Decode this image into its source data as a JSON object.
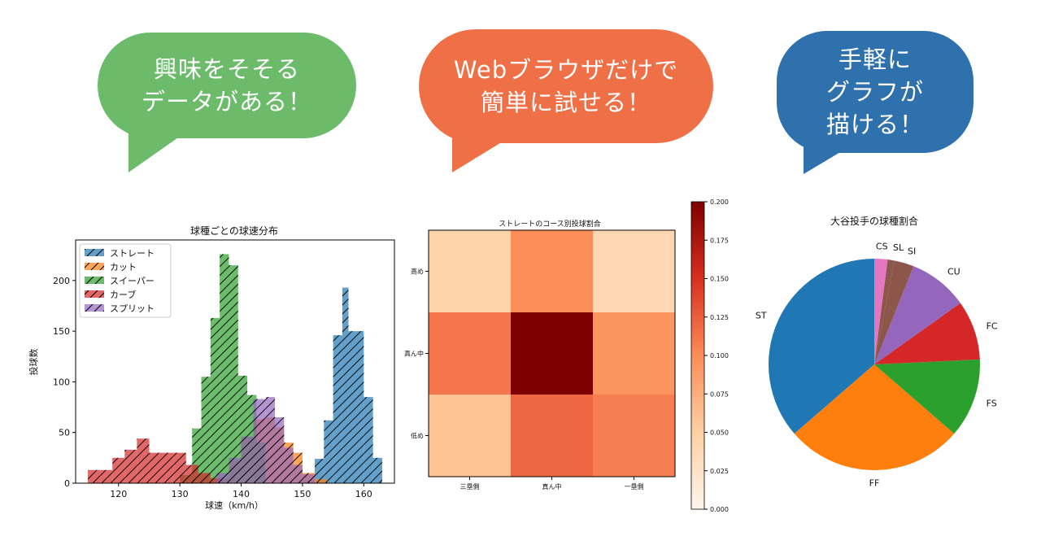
{
  "bubbles": [
    {
      "lines": [
        "興味をそそる",
        "データがある！"
      ],
      "color": "#6bbb6b"
    },
    {
      "lines": [
        "Webブラウザだけで",
        "簡単に試せる！"
      ],
      "color": "#ef7047"
    },
    {
      "lines": [
        "手軽に",
        "グラフが",
        "描ける！"
      ],
      "color": "#2f71ac"
    }
  ],
  "chart_data": [
    {
      "type": "histogram",
      "title": "球種ごとの球速分布",
      "xlabel": "球速（km/h）",
      "ylabel": "投球数",
      "xlim": [
        113,
        165
      ],
      "ylim": [
        0,
        240
      ],
      "xticks": [
        "120",
        "130",
        "140",
        "150",
        "160"
      ],
      "yticks": [
        "0",
        "50",
        "100",
        "150",
        "200"
      ],
      "legend": "top-left",
      "series": [
        {
          "name": "ストレート",
          "color": "#1f77b4",
          "bins": [
            [
              150,
              152,
              3
            ],
            [
              152,
              153.5,
              24
            ],
            [
              153.5,
              155,
              62
            ],
            [
              155,
              156.5,
              146
            ],
            [
              156.5,
              157.5,
              193
            ],
            [
              157.5,
              158.5,
              150
            ],
            [
              158.5,
              160,
              150
            ],
            [
              160,
              161.5,
              85
            ],
            [
              161.5,
              163,
              25
            ]
          ]
        },
        {
          "name": "カット",
          "color": "#ff7f0e",
          "bins": [
            [
              136,
              138,
              5
            ],
            [
              138,
              140,
              22
            ],
            [
              140,
              142,
              45
            ],
            [
              142,
              144,
              63
            ],
            [
              144,
              145.5,
              65
            ],
            [
              145.5,
              147,
              55
            ],
            [
              147,
              148.5,
              40
            ],
            [
              148.5,
              150,
              30
            ],
            [
              150,
              152,
              10
            ],
            [
              152,
              154,
              4
            ]
          ]
        },
        {
          "name": "スイーパー",
          "color": "#2ca02c",
          "bins": [
            [
              130,
              132,
              8
            ],
            [
              132,
              133.5,
              54
            ],
            [
              133.5,
              135,
              105
            ],
            [
              135,
              136.5,
              163
            ],
            [
              136.5,
              138,
              226
            ],
            [
              138,
              139.5,
              215
            ],
            [
              139.5,
              141,
              106
            ],
            [
              141,
              142.5,
              87
            ],
            [
              142.5,
              144,
              40
            ]
          ]
        },
        {
          "name": "カーブ",
          "color": "#d62728",
          "bins": [
            [
              115,
              117,
              13
            ],
            [
              117,
              119,
              13
            ],
            [
              119,
              121,
              25
            ],
            [
              121,
              123,
              33
            ],
            [
              123,
              125,
              44
            ],
            [
              125,
              127,
              30
            ],
            [
              127,
              129,
              30
            ],
            [
              129,
              131,
              30
            ],
            [
              131,
              133,
              18
            ],
            [
              133,
              135,
              10
            ],
            [
              135,
              137,
              5
            ]
          ]
        },
        {
          "name": "スプリット",
          "color": "#9467bd",
          "bins": [
            [
              136,
              138,
              10
            ],
            [
              138,
              140,
              25
            ],
            [
              140,
              142,
              46
            ],
            [
              142,
              144,
              83
            ],
            [
              144,
              145.5,
              85
            ],
            [
              145.5,
              147,
              65
            ],
            [
              147,
              148.5,
              35
            ],
            [
              148.5,
              150,
              18
            ],
            [
              150,
              152,
              9
            ]
          ]
        }
      ]
    },
    {
      "type": "heatmap",
      "title": "ストレートのコース別投球割合",
      "x_categories": [
        "三塁側",
        "真ん中",
        "一塁側"
      ],
      "y_categories": [
        "高め",
        "真ん中",
        "低め"
      ],
      "values": [
        [
          0.045,
          0.1,
          0.04
        ],
        [
          0.112,
          0.2,
          0.095
        ],
        [
          0.06,
          0.12,
          0.108
        ]
      ],
      "colorbar": {
        "min": 0.0,
        "max": 0.2,
        "ticks": [
          "0.000",
          "0.025",
          "0.050",
          "0.075",
          "0.100",
          "0.125",
          "0.150",
          "0.175",
          "0.200"
        ]
      }
    },
    {
      "type": "pie",
      "title": "大谷投手の球種割合",
      "labels": [
        "ST",
        "FF",
        "FS",
        "FC",
        "CU",
        "SI",
        "SL",
        "CS"
      ],
      "values": [
        36,
        27,
        12,
        9,
        9,
        3,
        1,
        2
      ],
      "colors": [
        "#1f77b4",
        "#ff7f0e",
        "#2ca02c",
        "#d62728",
        "#9467bd",
        "#8c564b",
        "#8c564b",
        "#e377c2"
      ]
    }
  ]
}
